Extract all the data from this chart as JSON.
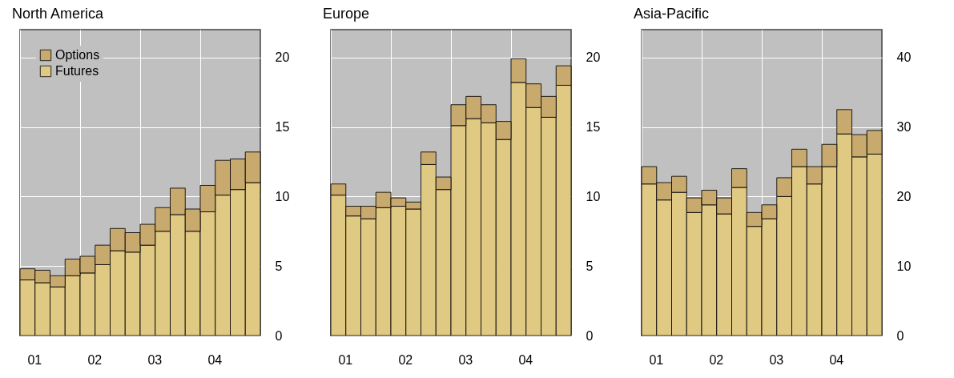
{
  "chart_data": [
    {
      "type": "bar",
      "title": "North America",
      "stacked": true,
      "categories": [
        "01",
        null,
        null,
        null,
        "02",
        null,
        null,
        null,
        "03",
        null,
        null,
        null,
        "04",
        null,
        null,
        null
      ],
      "ylim": [
        0,
        22
      ],
      "yticks": [
        0,
        5,
        10,
        15,
        20
      ],
      "grid": true,
      "legend": "top left",
      "series": [
        {
          "name": "Futures",
          "color": "#e0c983",
          "values": [
            4.0,
            3.8,
            3.5,
            4.3,
            4.5,
            5.1,
            6.1,
            6.0,
            6.5,
            7.5,
            8.7,
            7.5,
            8.9,
            10.1,
            10.5,
            11.0
          ]
        },
        {
          "name": "Options",
          "color": "#c9aa6e",
          "values": [
            0.8,
            0.9,
            0.8,
            1.2,
            1.2,
            1.4,
            1.6,
            1.4,
            1.5,
            1.7,
            1.9,
            1.6,
            1.9,
            2.5,
            2.2,
            2.2
          ]
        }
      ]
    },
    {
      "type": "bar",
      "title": "Europe",
      "stacked": true,
      "categories": [
        "01",
        null,
        null,
        null,
        "02",
        null,
        null,
        null,
        "03",
        null,
        null,
        null,
        "04",
        null,
        null,
        null
      ],
      "ylim": [
        0,
        22
      ],
      "yticks": [
        0,
        5,
        10,
        15,
        20
      ],
      "grid": true,
      "legend": false,
      "series": [
        {
          "color": "#e0c983",
          "values": [
            10.1,
            8.6,
            8.4,
            9.2,
            9.3,
            9.1,
            12.3,
            10.5,
            15.1,
            15.6,
            15.3,
            14.1,
            18.2,
            16.4,
            15.7,
            18.0
          ]
        },
        {
          "color": "#c9aa6e",
          "values": [
            0.8,
            0.7,
            0.9,
            1.1,
            0.6,
            0.5,
            0.9,
            0.9,
            1.5,
            1.6,
            1.3,
            1.3,
            1.7,
            1.7,
            1.5,
            1.4
          ]
        }
      ]
    },
    {
      "type": "bar",
      "title": "Asia-Pacific",
      "stacked": true,
      "categories": [
        "01",
        null,
        null,
        null,
        "02",
        null,
        null,
        null,
        "03",
        null,
        null,
        null,
        "04",
        null,
        null,
        null
      ],
      "ylim": [
        0,
        44
      ],
      "yticks": [
        0,
        10,
        20,
        30,
        40
      ],
      "grid": true,
      "legend": false,
      "series": [
        {
          "color": "#e0c983",
          "values": [
            21.8,
            19.5,
            20.6,
            17.7,
            18.8,
            17.5,
            21.3,
            15.7,
            16.8,
            20.0,
            24.3,
            21.8,
            24.3,
            29.0,
            25.7,
            26.1
          ]
        },
        {
          "color": "#c9aa6e",
          "values": [
            2.5,
            2.5,
            2.3,
            2.1,
            2.1,
            2.3,
            2.7,
            2.0,
            2.0,
            2.7,
            2.5,
            2.5,
            3.2,
            3.5,
            3.2,
            3.4
          ]
        }
      ]
    }
  ]
}
